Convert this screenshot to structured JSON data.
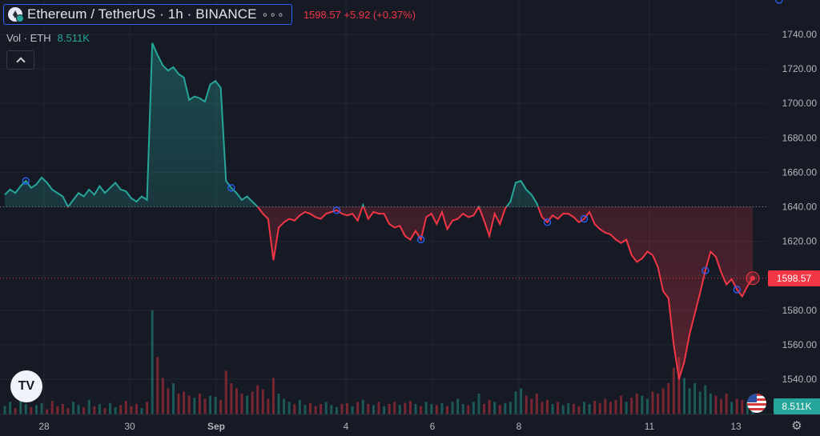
{
  "header": {
    "symbol_title": "Ethereum / TetherUS · 1h · BINANCE",
    "more_label": "∘∘∘",
    "price_info": "1598.57  +5.92 (+0.37%)"
  },
  "volume_indicator": {
    "label": "Vol · ETH",
    "value": "8.511K"
  },
  "last_price_badge": "1598.57",
  "volume_badge": "8.511K",
  "logo_text": "TV",
  "colors": {
    "up": "#26a69a",
    "down": "#f23645",
    "background": "#161a25",
    "grid": "#232632",
    "text": "#b2b5be"
  },
  "chart_data": {
    "type": "line",
    "symbol": "ETHUSDT",
    "ylim": [
      1530,
      1745
    ],
    "y_ticks": [
      1540,
      1560,
      1580,
      1600,
      1620,
      1640,
      1660,
      1680,
      1700,
      1720,
      1740
    ],
    "y_tick_labels": [
      "1540.00",
      "1560.00",
      "1580.00",
      "1600.00",
      "1620.00",
      "1640.00",
      "1660.00",
      "1680.00",
      "1700.00",
      "1720.00",
      "1740.00"
    ],
    "x_tick_labels": [
      "28",
      "30",
      "Sep",
      "4",
      "6",
      "8",
      "11",
      "13"
    ],
    "baseline": 1640,
    "last_price": 1598.57,
    "series": [
      {
        "values": [
          1647,
          1650,
          1648,
          1652,
          1655,
          1651,
          1653,
          1657,
          1654,
          1650,
          1648,
          1646,
          1640,
          1644,
          1648,
          1646,
          1650,
          1647,
          1652,
          1648,
          1651,
          1654,
          1650,
          1649,
          1645,
          1643,
          1646,
          1644,
          1735,
          1728,
          1722,
          1719,
          1721,
          1717,
          1715,
          1702,
          1704,
          1703,
          1701,
          1711,
          1713,
          1709,
          1655,
          1651,
          1648,
          1644,
          1646,
          1643,
          1640,
          1636,
          1633,
          1609,
          1628,
          1631,
          1633,
          1632,
          1635,
          1637,
          1636,
          1634,
          1633,
          1636,
          1637,
          1638,
          1636,
          1635,
          1636,
          1632,
          1641,
          1633,
          1637,
          1636,
          1636,
          1630,
          1628,
          1629,
          1623,
          1621,
          1626,
          1621,
          1634,
          1636,
          1630,
          1637,
          1627,
          1632,
          1633,
          1636,
          1634,
          1635,
          1640,
          1632,
          1623,
          1636,
          1630,
          1639,
          1643,
          1654,
          1655,
          1650,
          1647,
          1642,
          1634,
          1631,
          1635,
          1633,
          1636,
          1636,
          1634,
          1631,
          1633,
          1637,
          1630,
          1627,
          1625,
          1624,
          1621,
          1619,
          1621,
          1612,
          1608,
          1610,
          1614,
          1612,
          1605,
          1591,
          1587,
          1560,
          1540,
          1550,
          1566,
          1578,
          1590,
          1603,
          1614,
          1611,
          1602,
          1595,
          1598,
          1592,
          1588,
          1594,
          1598.57
        ]
      }
    ],
    "volume": [
      0.08,
      0.12,
      0.06,
      0.15,
      0.1,
      0.07,
      0.09,
      0.11,
      0.05,
      0.13,
      0.08,
      0.1,
      0.06,
      0.12,
      0.09,
      0.07,
      0.14,
      0.08,
      0.1,
      0.06,
      0.11,
      0.07,
      0.09,
      0.13,
      0.08,
      0.1,
      0.06,
      0.12,
      1.0,
      0.55,
      0.35,
      0.25,
      0.3,
      0.2,
      0.22,
      0.18,
      0.16,
      0.2,
      0.15,
      0.18,
      0.17,
      0.14,
      0.42,
      0.3,
      0.25,
      0.2,
      0.18,
      0.22,
      0.28,
      0.24,
      0.15,
      0.35,
      0.2,
      0.15,
      0.12,
      0.1,
      0.14,
      0.09,
      0.11,
      0.08,
      0.1,
      0.12,
      0.09,
      0.07,
      0.1,
      0.11,
      0.08,
      0.12,
      0.14,
      0.1,
      0.09,
      0.12,
      0.08,
      0.1,
      0.12,
      0.09,
      0.11,
      0.13,
      0.1,
      0.08,
      0.12,
      0.1,
      0.09,
      0.11,
      0.08,
      0.12,
      0.15,
      0.1,
      0.09,
      0.12,
      0.2,
      0.1,
      0.14,
      0.12,
      0.09,
      0.11,
      0.12,
      0.22,
      0.25,
      0.18,
      0.15,
      0.2,
      0.12,
      0.14,
      0.1,
      0.12,
      0.09,
      0.11,
      0.1,
      0.08,
      0.12,
      0.1,
      0.13,
      0.11,
      0.15,
      0.12,
      0.14,
      0.18,
      0.12,
      0.16,
      0.2,
      0.18,
      0.15,
      0.22,
      0.2,
      0.25,
      0.3,
      0.45,
      0.55,
      0.35,
      0.25,
      0.3,
      0.22,
      0.28,
      0.2,
      0.18,
      0.15,
      0.2,
      0.12,
      0.15,
      0.14,
      0.12,
      0.1
    ],
    "markers": [
      4,
      43,
      63,
      79,
      103,
      110,
      133,
      139,
      147
    ]
  }
}
